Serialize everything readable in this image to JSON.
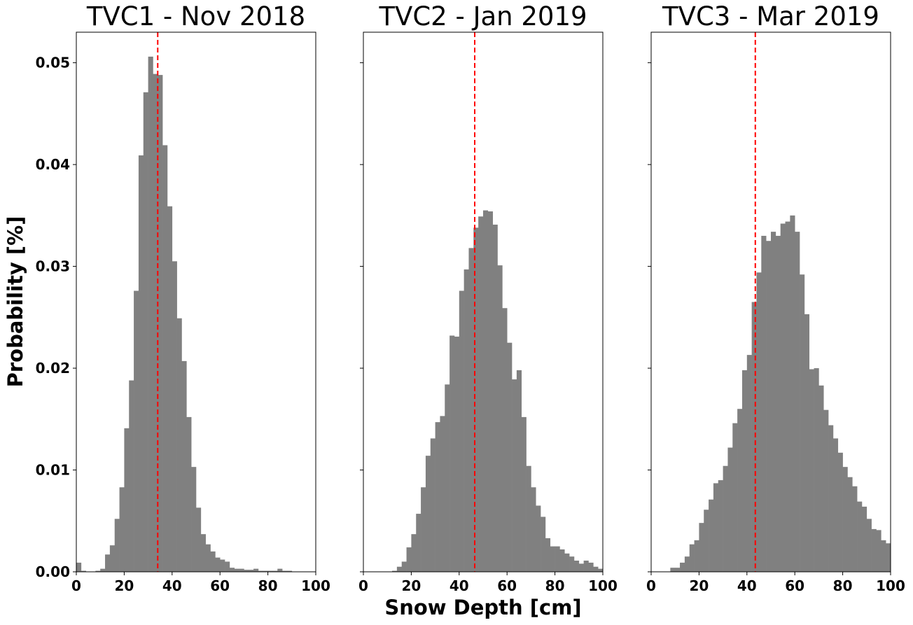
{
  "figure": {
    "xlabel": "Snow Depth [cm]",
    "ylabel": "Probability [%]"
  },
  "chart_data": [
    {
      "type": "bar",
      "title": "TVC1 - Nov 2018",
      "xlim": [
        0,
        100
      ],
      "ylim": [
        0,
        0.053
      ],
      "x_ticks": [
        0,
        20,
        40,
        60,
        80,
        100
      ],
      "y_ticks": [
        0.0,
        0.01,
        0.02,
        0.03,
        0.04,
        0.05
      ],
      "y_tick_labels": [
        "0.00",
        "0.01",
        "0.02",
        "0.03",
        "0.04",
        "0.05"
      ],
      "bin_width": 2,
      "bar_color": "#808080",
      "mean_line": {
        "value": 34,
        "color": "#ff0000",
        "style": "dashed"
      },
      "bins_start": [
        0,
        2,
        4,
        6,
        8,
        10,
        12,
        14,
        16,
        18,
        20,
        22,
        24,
        26,
        28,
        30,
        32,
        34,
        36,
        38,
        40,
        42,
        44,
        46,
        48,
        50,
        52,
        54,
        56,
        58,
        60,
        62,
        64,
        66,
        68,
        70,
        72,
        74,
        76,
        78,
        80,
        82,
        84,
        86,
        88,
        90,
        92,
        94,
        96,
        98
      ],
      "values": [
        0.0009,
        0.0001,
        0,
        0,
        0.0001,
        0.0003,
        0.0017,
        0.0026,
        0.0052,
        0.0083,
        0.0141,
        0.0188,
        0.0276,
        0.0409,
        0.0471,
        0.0506,
        0.0489,
        0.0488,
        0.0419,
        0.0359,
        0.0305,
        0.0249,
        0.0207,
        0.0152,
        0.0103,
        0.0063,
        0.0037,
        0.0027,
        0.002,
        0.0014,
        0.0012,
        0.001,
        0.0004,
        0.0003,
        0.0003,
        0.0002,
        0.0002,
        0.0003,
        0.0001,
        0.0001,
        0.0001,
        0.0001,
        0.0003,
        0.0001,
        0.0001,
        0,
        0,
        0,
        0,
        0
      ]
    },
    {
      "type": "bar",
      "title": "TVC2 - Jan 2019",
      "xlim": [
        0,
        100
      ],
      "ylim": [
        0,
        0.053
      ],
      "x_ticks": [
        0,
        20,
        40,
        60,
        80,
        100
      ],
      "y_ticks": [
        0.0,
        0.01,
        0.02,
        0.03,
        0.04,
        0.05
      ],
      "bin_width": 2,
      "bar_color": "#808080",
      "mean_line": {
        "value": 46.5,
        "color": "#ff0000",
        "style": "dashed"
      },
      "bins_start": [
        0,
        2,
        4,
        6,
        8,
        10,
        12,
        14,
        16,
        18,
        20,
        22,
        24,
        26,
        28,
        30,
        32,
        34,
        36,
        38,
        40,
        42,
        44,
        46,
        48,
        50,
        52,
        54,
        56,
        58,
        60,
        62,
        64,
        66,
        68,
        70,
        72,
        74,
        76,
        78,
        80,
        82,
        84,
        86,
        88,
        90,
        92,
        94,
        96,
        98
      ],
      "values": [
        0,
        0,
        0,
        0,
        0,
        0,
        0.0001,
        0.0005,
        0.001,
        0.0024,
        0.0037,
        0.0057,
        0.0083,
        0.0114,
        0.0131,
        0.0147,
        0.0153,
        0.0184,
        0.0232,
        0.0231,
        0.0276,
        0.0297,
        0.0318,
        0.0338,
        0.0349,
        0.0355,
        0.0354,
        0.0341,
        0.0301,
        0.0259,
        0.0225,
        0.0189,
        0.0198,
        0.0152,
        0.0104,
        0.0083,
        0.0065,
        0.0054,
        0.0033,
        0.0025,
        0.0025,
        0.0022,
        0.0018,
        0.0015,
        0.0011,
        0.0008,
        0.0011,
        0.0009,
        0.0005,
        0.0003
      ]
    },
    {
      "type": "bar",
      "title": "TVC3 - Mar 2019",
      "xlim": [
        0,
        100
      ],
      "ylim": [
        0,
        0.053
      ],
      "x_ticks": [
        0,
        20,
        40,
        60,
        80,
        100
      ],
      "y_ticks": [
        0.0,
        0.01,
        0.02,
        0.03,
        0.04,
        0.05
      ],
      "bin_width": 2,
      "bar_color": "#808080",
      "mean_line": {
        "value": 43.5,
        "color": "#ff0000",
        "style": "dashed"
      },
      "bins_start": [
        0,
        2,
        4,
        6,
        8,
        10,
        12,
        14,
        16,
        18,
        20,
        22,
        24,
        26,
        28,
        30,
        32,
        34,
        36,
        38,
        40,
        42,
        44,
        46,
        48,
        50,
        52,
        54,
        56,
        58,
        60,
        62,
        64,
        66,
        68,
        70,
        72,
        74,
        76,
        78,
        80,
        82,
        84,
        86,
        88,
        90,
        92,
        94,
        96,
        98
      ],
      "values": [
        0,
        0,
        0,
        0,
        0.0004,
        0.0004,
        0.0009,
        0.0015,
        0.0027,
        0.0031,
        0.0048,
        0.0061,
        0.0071,
        0.0087,
        0.009,
        0.0104,
        0.0122,
        0.0146,
        0.016,
        0.0198,
        0.0213,
        0.0265,
        0.0294,
        0.033,
        0.0325,
        0.0334,
        0.033,
        0.0342,
        0.0344,
        0.035,
        0.0334,
        0.0292,
        0.0253,
        0.0199,
        0.02,
        0.0183,
        0.0159,
        0.0144,
        0.0131,
        0.0117,
        0.0103,
        0.0093,
        0.0084,
        0.0069,
        0.0064,
        0.0052,
        0.0042,
        0.0041,
        0.0031,
        0.0028
      ]
    }
  ]
}
